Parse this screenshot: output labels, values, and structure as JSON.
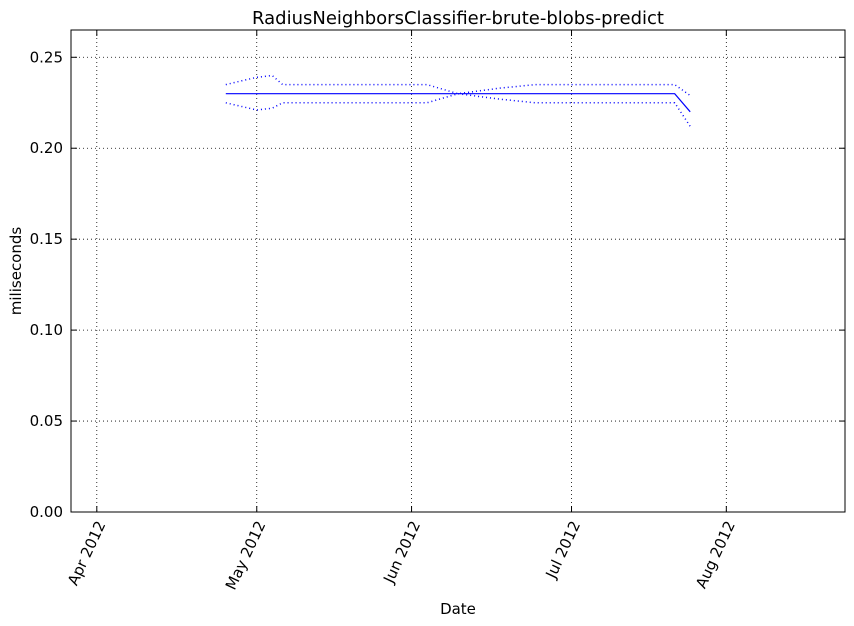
{
  "chart_data": {
    "type": "line",
    "title": "RadiusNeighborsClassifier-brute-blobs-predict",
    "xlabel": "Date",
    "ylabel": "miliseconds",
    "x_ticks": [
      "2012-03-27",
      "2012-04-27",
      "2012-05-27",
      "2012-06-27",
      "2012-07-27"
    ],
    "x_tick_labels": [
      "Apr 2012",
      "May 2012",
      "Jun 2012",
      "Jul 2012",
      "Aug 2012"
    ],
    "xlim": [
      "2012-03-22",
      "2012-08-19"
    ],
    "ylim": [
      0.0,
      0.265
    ],
    "y_ticks": [
      0.0,
      0.05,
      0.1,
      0.15,
      0.2,
      0.25
    ],
    "y_tick_labels": [
      "0.00",
      "0.05",
      "0.10",
      "0.15",
      "0.20",
      "0.25"
    ],
    "grid": true,
    "series": [
      {
        "role": "mean",
        "style": "solid",
        "color": "#0000ff",
        "x": [
          "2012-04-21",
          "2012-05-01",
          "2012-06-05",
          "2012-06-27",
          "2012-07-17",
          "2012-07-20"
        ],
        "y": [
          0.23,
          0.23,
          0.23,
          0.23,
          0.23,
          0.22
        ]
      },
      {
        "role": "upper",
        "style": "dotted",
        "color": "#0000ff",
        "x": [
          "2012-04-21",
          "2012-04-24",
          "2012-04-27",
          "2012-04-30",
          "2012-05-02",
          "2012-05-27",
          "2012-05-30",
          "2012-06-05",
          "2012-06-13",
          "2012-06-20",
          "2012-06-27",
          "2012-07-10",
          "2012-07-17",
          "2012-07-20"
        ],
        "y": [
          0.235,
          0.237,
          0.239,
          0.24,
          0.235,
          0.235,
          0.235,
          0.23,
          0.233,
          0.235,
          0.235,
          0.235,
          0.235,
          0.229
        ]
      },
      {
        "role": "lower",
        "style": "dotted",
        "color": "#0000ff",
        "x": [
          "2012-04-21",
          "2012-04-24",
          "2012-04-27",
          "2012-04-30",
          "2012-05-02",
          "2012-05-27",
          "2012-05-30",
          "2012-06-05",
          "2012-06-13",
          "2012-06-20",
          "2012-06-27",
          "2012-07-10",
          "2012-07-17",
          "2012-07-20"
        ],
        "y": [
          0.225,
          0.223,
          0.221,
          0.222,
          0.225,
          0.225,
          0.225,
          0.23,
          0.227,
          0.225,
          0.225,
          0.225,
          0.225,
          0.212
        ]
      }
    ]
  }
}
